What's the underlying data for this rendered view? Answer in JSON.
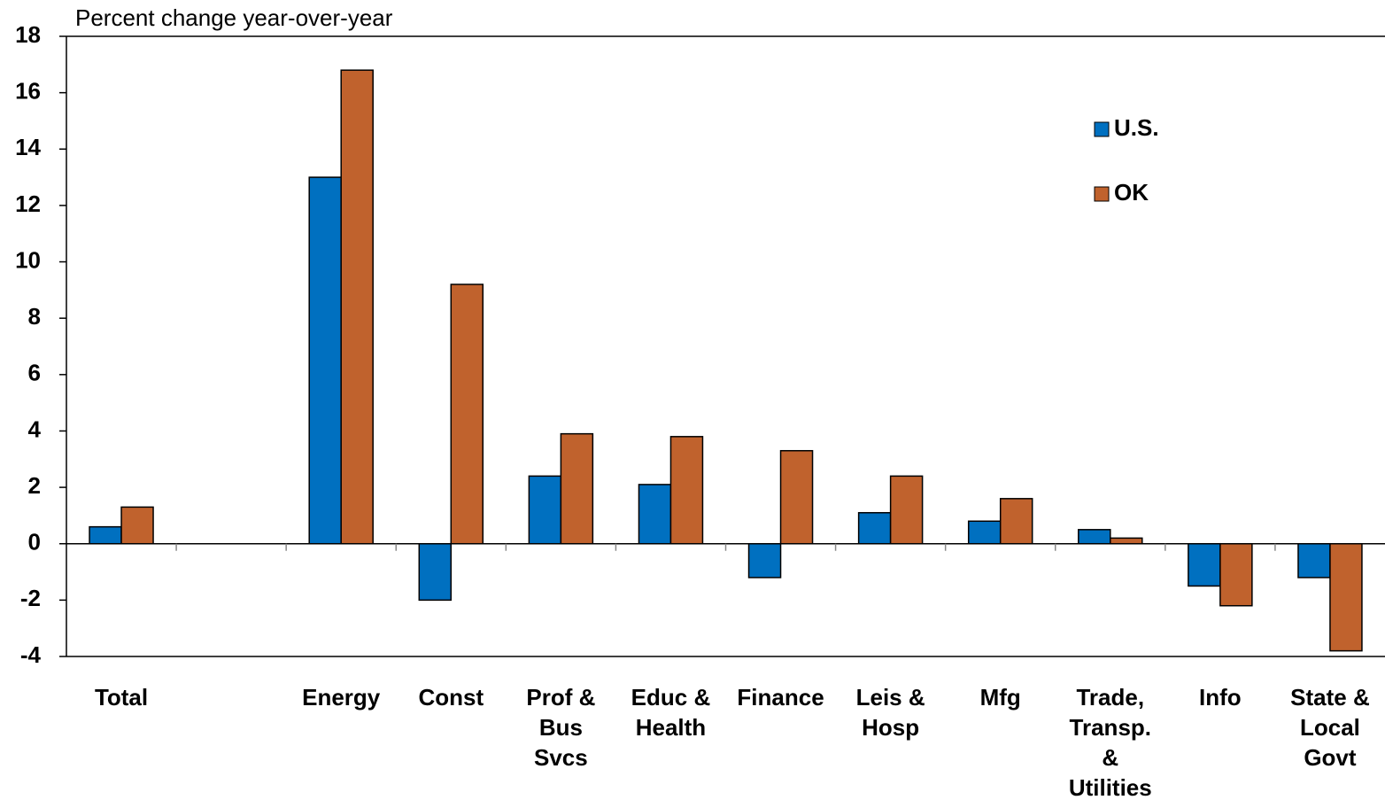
{
  "chart_data": {
    "type": "bar",
    "y_axis_label": "Percent change year-over-year",
    "categories": [
      "Total",
      null,
      "Energy",
      "Const",
      "Prof & Bus Svcs",
      "Educ & Health",
      "Finance",
      "Leis & Hosp",
      "Mfg",
      "Trade, Transp. & Utilities",
      "Info",
      "State & Local Govt"
    ],
    "series": [
      {
        "name": "U.S.",
        "color": "#0070c0",
        "values": [
          0.6,
          null,
          13,
          -2,
          2.4,
          2.1,
          -1.2,
          1.1,
          0.8,
          0.5,
          -1.5,
          -1.2
        ]
      },
      {
        "name": "OK",
        "color": "#c0622d",
        "values": [
          1.3,
          null,
          16.8,
          9.2,
          3.9,
          3.8,
          3.3,
          2.4,
          1.6,
          0.2,
          -2.2,
          -3.8
        ]
      }
    ],
    "ylim": [
      -4,
      18
    ],
    "yticks": [
      -4,
      -2,
      0,
      2,
      4,
      6,
      8,
      10,
      12,
      14,
      16,
      18
    ],
    "grid": false,
    "legend": "top-right"
  }
}
